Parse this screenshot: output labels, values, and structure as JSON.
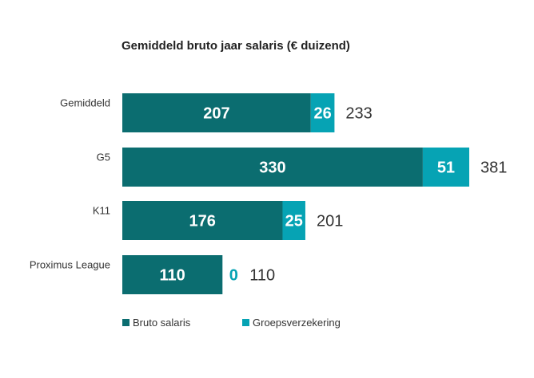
{
  "chart_data": {
    "type": "bar",
    "orientation": "horizontal",
    "stacked": true,
    "title": "Gemiddeld bruto jaar salaris (€ duizend)",
    "categories": [
      "Gemiddeld",
      "G5",
      "K11",
      "Proximus League"
    ],
    "series": [
      {
        "name": "Bruto salaris",
        "values": [
          207,
          330,
          176,
          110
        ],
        "color": "#0b6d70",
        "label_color": "#ffffff"
      },
      {
        "name": "Groepsverzekering",
        "values": [
          26,
          51,
          25,
          0
        ],
        "color": "#06a3b4",
        "label_color": "#ffffff",
        "zero_label_color": "#06a3b4"
      }
    ],
    "totals": [
      233,
      381,
      201,
      110
    ],
    "total_label_color": "#333333",
    "label_color": "#333333",
    "xlim": [
      0,
      381
    ],
    "grid": false,
    "legend": "bottom-left"
  }
}
